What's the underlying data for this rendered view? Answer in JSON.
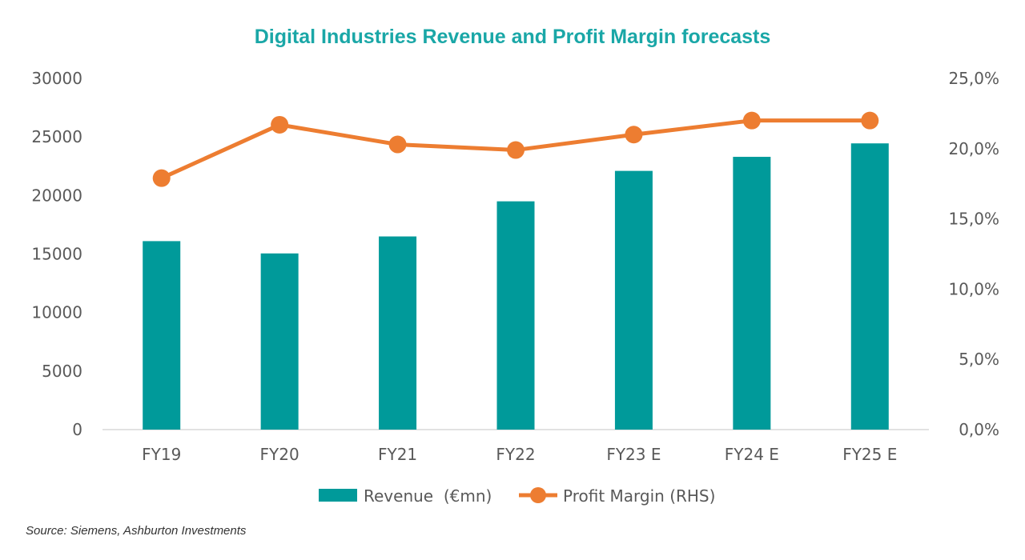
{
  "chart_data": {
    "type": "bar",
    "title": "Digital Industries Revenue and Profit Margin forecasts",
    "categories": [
      "FY19",
      "FY20",
      "FY21",
      "FY22",
      "FY23E",
      "FY24E",
      "FY25E"
    ],
    "series": [
      {
        "name": "Revenue  (€mn)",
        "type": "bar",
        "axis": "left",
        "color": "#009a9a",
        "values": [
          16100,
          15050,
          16500,
          19500,
          22100,
          23300,
          24450
        ]
      },
      {
        "name": "Profit Margin (RHS)",
        "type": "line",
        "axis": "right",
        "color": "#ed7d31",
        "values": [
          17.9,
          21.7,
          20.3,
          19.9,
          21.0,
          22.0,
          22.0
        ]
      }
    ],
    "y_left": {
      "ylim": [
        0,
        30000
      ],
      "ticks": [
        0,
        5000,
        10000,
        15000,
        20000,
        25000,
        30000
      ],
      "tick_labels": [
        "0",
        "5000",
        "10000",
        "15000",
        "20000",
        "25000",
        "30000"
      ]
    },
    "y_right": {
      "ylim": [
        0,
        25
      ],
      "ticks": [
        0,
        5,
        10,
        15,
        20,
        25
      ],
      "tick_labels": [
        "0,0%",
        "5,0%",
        "10,0%",
        "15,0%",
        "20,0%",
        "25,0%"
      ]
    },
    "x_tick_labels": [
      "FY19",
      "FY20",
      "FY21",
      "FY22",
      "FY23 E",
      "FY24 E",
      "FY25 E"
    ],
    "legend_position": "bottom",
    "grid": false,
    "title_color": "#1aa7a7"
  },
  "source_note": "Source: Siemens, Ashburton Investments"
}
